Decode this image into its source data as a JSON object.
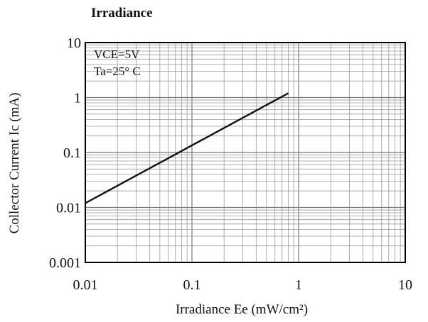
{
  "chart_data": {
    "type": "line",
    "title": "Irradiance",
    "xlabel": "Irradiance Ee (mW/cm²)",
    "ylabel": "Collector Current Ic (mA)",
    "x_scale": "log",
    "y_scale": "log",
    "xlim": [
      0.01,
      10
    ],
    "ylim": [
      0.001,
      10
    ],
    "x_ticks": [
      {
        "value": 0.01,
        "label": "0.01"
      },
      {
        "value": 0.1,
        "label": "0.1"
      },
      {
        "value": 1,
        "label": "1"
      },
      {
        "value": 10,
        "label": "10"
      }
    ],
    "y_ticks": [
      {
        "value": 0.001,
        "label": "0.001"
      },
      {
        "value": 0.01,
        "label": "0.01"
      },
      {
        "value": 0.1,
        "label": "0.1"
      },
      {
        "value": 1,
        "label": "1"
      },
      {
        "value": 10,
        "label": "10"
      }
    ],
    "grid": true,
    "series": [
      {
        "x": [
          0.01,
          0.8
        ],
        "y": [
          0.012,
          1.2
        ],
        "color": "#111111"
      }
    ],
    "annotations": [
      "VCE=5V",
      "Ta=25° C"
    ]
  }
}
